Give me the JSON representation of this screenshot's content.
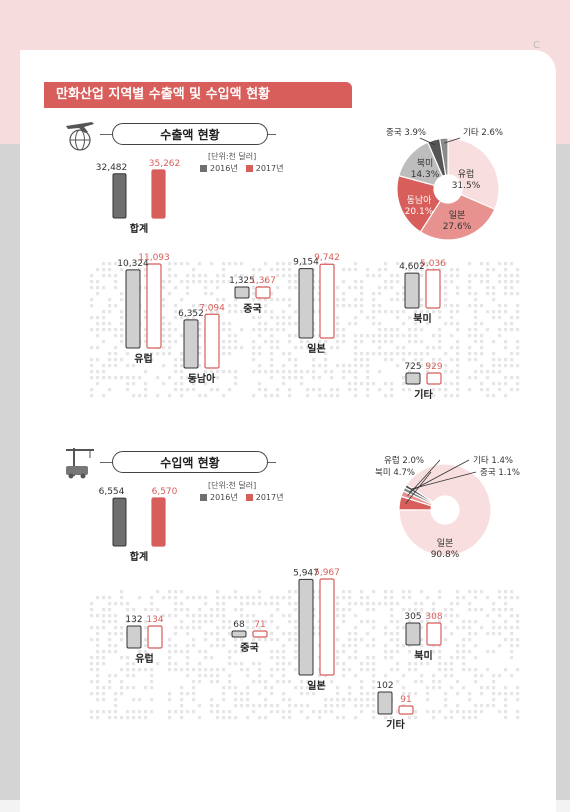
{
  "page": {
    "mark": "C"
  },
  "title": "만화산업 지역별 수출액 및 수입액 현황",
  "colors": {
    "y2016": "#6f6f6f",
    "y2016_light": "#cfcfcf",
    "y2017": "#d75e5a",
    "y2017_light": "#ffffff",
    "accent": "#d75e5a"
  },
  "export": {
    "heading": "수출액 현황",
    "unit": "[단위:천 달러]",
    "legend": [
      "2016년",
      "2017년"
    ],
    "total": {
      "label": "합계",
      "v2016": 32482,
      "v2017": 35262,
      "t2016": "32,482",
      "t2017": "35,262"
    },
    "regions": [
      {
        "label": "유럽",
        "v2016": 10324,
        "v2017": 11093,
        "t2016": "10,324",
        "t2017": "11,093"
      },
      {
        "label": "동남아",
        "v2016": 6352,
        "v2017": 7094,
        "t2016": "6,352",
        "t2017": "7,094"
      },
      {
        "label": "중국",
        "v2016": 1325,
        "v2017": 1367,
        "t2016": "1,325",
        "t2017": "1,367"
      },
      {
        "label": "일본",
        "v2016": 9154,
        "v2017": 9742,
        "t2016": "9,154",
        "t2017": "9,742"
      },
      {
        "label": "북미",
        "v2016": 4602,
        "v2017": 5036,
        "t2016": "4,602",
        "t2017": "5,036"
      },
      {
        "label": "기타",
        "v2016": 725,
        "v2017": 929,
        "t2016": "725",
        "t2017": "929"
      }
    ],
    "donut": [
      {
        "label": "유럽",
        "value": 31.5,
        "text": "31.5%",
        "color": "#f8dede"
      },
      {
        "label": "일본",
        "value": 27.6,
        "text": "27.6%",
        "color": "#e7928f"
      },
      {
        "label": "동남아",
        "value": 20.1,
        "text": "20.1%",
        "color": "#d75e5a"
      },
      {
        "label": "북미",
        "value": 14.3,
        "text": "14.3%",
        "color": "#bdbdbd"
      },
      {
        "label": "중국",
        "value": 3.9,
        "text": "3.9%",
        "color": "#555555"
      },
      {
        "label": "기타",
        "value": 2.6,
        "text": "2.6%",
        "color": "#8a8a8a"
      }
    ]
  },
  "import": {
    "heading": "수입액 현황",
    "unit": "[단위:천 달러]",
    "legend": [
      "2016년",
      "2017년"
    ],
    "total": {
      "label": "합계",
      "v2016": 6554,
      "v2017": 6570,
      "t2016": "6,554",
      "t2017": "6,570"
    },
    "regions": [
      {
        "label": "유럽",
        "v2016": 132,
        "v2017": 134,
        "t2016": "132",
        "t2017": "134"
      },
      {
        "label": "중국",
        "v2016": 68,
        "v2017": 71,
        "t2016": "68",
        "t2017": "71"
      },
      {
        "label": "일본",
        "v2016": 5947,
        "v2017": 5967,
        "t2016": "5,947",
        "t2017": "5,967"
      },
      {
        "label": "북미",
        "v2016": 305,
        "v2017": 308,
        "t2016": "305",
        "t2017": "308"
      },
      {
        "label": "기타",
        "v2016": 102,
        "v2017": 91,
        "t2016": "102",
        "t2017": "91"
      }
    ],
    "donut": [
      {
        "label": "일본",
        "value": 90.8,
        "text": "90.8%",
        "color": "#f8dede"
      },
      {
        "label": "북미",
        "value": 4.7,
        "text": "4.7%",
        "color": "#d75e5a"
      },
      {
        "label": "유럽",
        "value": 2.0,
        "text": "2.0%",
        "color": "#e7928f"
      },
      {
        "label": "기타",
        "value": 1.4,
        "text": "1.4%",
        "color": "#8a8a8a"
      },
      {
        "label": "중국",
        "value": 1.1,
        "text": "1.1%",
        "color": "#555555"
      }
    ]
  },
  "chart_data": [
    {
      "type": "bar",
      "title": "수출액 현황",
      "ylabel": "천 달러",
      "categories": [
        "합계",
        "유럽",
        "동남아",
        "중국",
        "일본",
        "북미",
        "기타"
      ],
      "series": [
        {
          "name": "2016년",
          "values": [
            32482,
            10324,
            6352,
            1325,
            9154,
            4602,
            725
          ]
        },
        {
          "name": "2017년",
          "values": [
            35262,
            11093,
            7094,
            1367,
            9742,
            5036,
            929
          ]
        }
      ]
    },
    {
      "type": "pie",
      "title": "수출액 현황",
      "categories": [
        "유럽",
        "일본",
        "동남아",
        "북미",
        "중국",
        "기타"
      ],
      "values": [
        31.5,
        27.6,
        20.1,
        14.3,
        3.9,
        2.6
      ]
    },
    {
      "type": "bar",
      "title": "수입액 현황",
      "ylabel": "천 달러",
      "categories": [
        "합계",
        "유럽",
        "중국",
        "일본",
        "북미",
        "기타"
      ],
      "series": [
        {
          "name": "2016년",
          "values": [
            6554,
            132,
            68,
            5947,
            305,
            102
          ]
        },
        {
          "name": "2017년",
          "values": [
            6570,
            134,
            71,
            5967,
            308,
            91
          ]
        }
      ]
    },
    {
      "type": "pie",
      "title": "수입액 현황",
      "categories": [
        "일본",
        "북미",
        "유럽",
        "기타",
        "중국"
      ],
      "values": [
        90.8,
        4.7,
        2.0,
        1.4,
        1.1
      ]
    }
  ]
}
